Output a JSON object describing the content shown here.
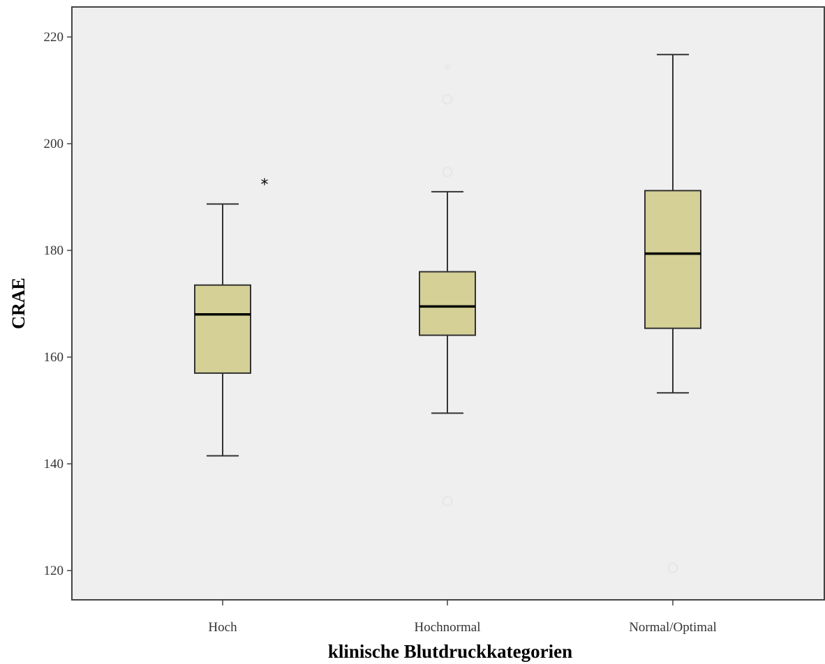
{
  "chart_data": {
    "type": "boxplot",
    "xlabel": "klinische Blutdruckkategorien",
    "ylabel": "CRAE",
    "ylim": [
      114.5,
      225.5
    ],
    "yticks": [
      120,
      140,
      160,
      180,
      200,
      220
    ],
    "grid": false,
    "categories": [
      "Hoch",
      "Hochnormal",
      "Normal/Optimal"
    ],
    "boxes": [
      {
        "category": "Hoch",
        "whisker_low": 141.5,
        "q1": 157.0,
        "median": 168.0,
        "q3": 173.5,
        "whisker_high": 188.7,
        "outliers": [],
        "extremes": [
          192.4
        ]
      },
      {
        "category": "Hochnormal",
        "whisker_low": 149.5,
        "q1": 164.1,
        "median": 169.5,
        "q3": 176.0,
        "whisker_high": 191.0,
        "outliers": [
          208.3,
          194.7,
          133.0
        ],
        "extremes": [
          214.0
        ]
      },
      {
        "category": "Normal/Optimal",
        "whisker_low": 153.3,
        "q1": 165.4,
        "median": 179.4,
        "q3": 191.2,
        "whisker_high": 216.7,
        "outliers": [
          120.5
        ],
        "extremes": []
      }
    ],
    "colors": {
      "plot_background": "#efefef",
      "box_fill": "#d4d096",
      "box_stroke": "#333333",
      "whisker": "#333333",
      "median": "#000000",
      "extreme_hoch": "#000000",
      "extreme_faded": "#e6e6e6"
    }
  }
}
